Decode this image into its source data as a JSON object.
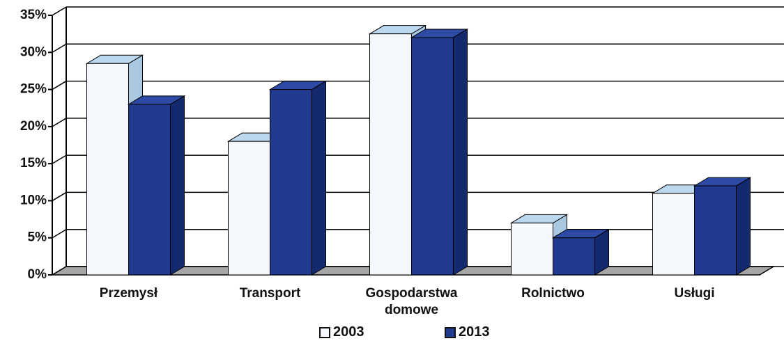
{
  "chart_data": {
    "type": "bar3d",
    "categories": [
      "Przemysł",
      "Transport",
      "Gospodarstwa domowe",
      "Rolnictwo",
      "Usługi"
    ],
    "series": [
      {
        "name": "2003",
        "color": "#f4f8fc",
        "values": [
          28.5,
          18,
          32.5,
          7,
          11
        ]
      },
      {
        "name": "2013",
        "color": "#1f3a8f",
        "values": [
          23,
          25,
          32,
          5,
          12
        ]
      }
    ],
    "ylim": [
      0,
      35
    ],
    "yticks": [
      {
        "value": 0,
        "label": "0%"
      },
      {
        "value": 5,
        "label": "5%"
      },
      {
        "value": 10,
        "label": "10%"
      },
      {
        "value": 15,
        "label": "15%"
      },
      {
        "value": 20,
        "label": "20%"
      },
      {
        "value": 25,
        "label": "25%"
      },
      {
        "value": 30,
        "label": "30%"
      },
      {
        "value": 35,
        "label": "35%"
      }
    ],
    "grid": true
  }
}
